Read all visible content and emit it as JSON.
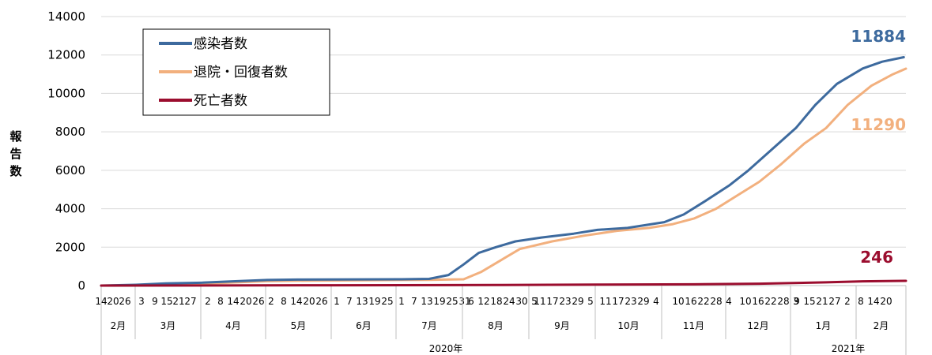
{
  "chart_data": {
    "type": "line",
    "title": "",
    "ylabel": "報告数",
    "ylim": [
      0,
      14000
    ],
    "yticks": [
      0,
      2000,
      4000,
      6000,
      8000,
      10000,
      12000,
      14000
    ],
    "grid": true,
    "legend_position": "top-left",
    "colors": {
      "infected": "#3d6a9e",
      "recovered": "#f2b07e",
      "deaths": "#9b0d2e",
      "grid": "#d9d9d9"
    },
    "x_day_labels": [
      "14",
      "20",
      "26",
      "3",
      "9",
      "15",
      "21",
      "27",
      "2",
      "8",
      "14",
      "20",
      "26",
      "2",
      "8",
      "14",
      "20",
      "26",
      "1",
      "7",
      "13",
      "19",
      "25",
      "1",
      "7",
      "13",
      "19",
      "25",
      "31",
      "6",
      "12",
      "18",
      "24",
      "30",
      "5",
      "11",
      "17",
      "23",
      "29",
      "5",
      "11",
      "17",
      "23",
      "29",
      "4",
      "10",
      "16",
      "22",
      "28",
      "4",
      "10",
      "16",
      "22",
      "28",
      "3",
      "9",
      "15",
      "21",
      "27",
      "2",
      "8",
      "14",
      "20"
    ],
    "months": [
      {
        "label": "2月"
      },
      {
        "label": "3月"
      },
      {
        "label": "4月"
      },
      {
        "label": "5月"
      },
      {
        "label": "6月"
      },
      {
        "label": "7月"
      },
      {
        "label": "8月"
      },
      {
        "label": "9月"
      },
      {
        "label": "10月"
      },
      {
        "label": "11月"
      },
      {
        "label": "12月"
      },
      {
        "label": "1月"
      },
      {
        "label": "2月"
      }
    ],
    "years": [
      {
        "label": "2020年"
      },
      {
        "label": "2021年"
      }
    ],
    "series": [
      {
        "key": "infected",
        "name": "感染者数",
        "end_label": "11884",
        "points": [
          [
            "2020-02-14",
            0
          ],
          [
            "2020-03-01",
            40
          ],
          [
            "2020-03-15",
            110
          ],
          [
            "2020-04-01",
            150
          ],
          [
            "2020-04-15",
            220
          ],
          [
            "2020-05-01",
            290
          ],
          [
            "2020-05-15",
            310
          ],
          [
            "2020-06-01",
            320
          ],
          [
            "2020-07-01",
            330
          ],
          [
            "2020-07-15",
            350
          ],
          [
            "2020-07-24",
            550
          ],
          [
            "2020-07-31",
            1100
          ],
          [
            "2020-08-07",
            1700
          ],
          [
            "2020-08-15",
            2000
          ],
          [
            "2020-08-24",
            2300
          ],
          [
            "2020-09-05",
            2500
          ],
          [
            "2020-09-20",
            2700
          ],
          [
            "2020-10-01",
            2900
          ],
          [
            "2020-10-15",
            3000
          ],
          [
            "2020-11-01",
            3300
          ],
          [
            "2020-11-10",
            3700
          ],
          [
            "2020-11-20",
            4400
          ],
          [
            "2020-12-01",
            5200
          ],
          [
            "2020-12-10",
            6000
          ],
          [
            "2020-12-20",
            7000
          ],
          [
            "2021-01-01",
            8200
          ],
          [
            "2021-01-10",
            9400
          ],
          [
            "2021-01-20",
            10500
          ],
          [
            "2021-02-01",
            11300
          ],
          [
            "2021-02-10",
            11650
          ],
          [
            "2021-02-20",
            11884
          ]
        ]
      },
      {
        "key": "recovered",
        "name": "退院・回復者数",
        "end_label": "11290",
        "points": [
          [
            "2020-02-14",
            0
          ],
          [
            "2020-03-01",
            20
          ],
          [
            "2020-03-20",
            80
          ],
          [
            "2020-04-10",
            140
          ],
          [
            "2020-05-01",
            230
          ],
          [
            "2020-05-20",
            260
          ],
          [
            "2020-06-15",
            280
          ],
          [
            "2020-07-15",
            300
          ],
          [
            "2020-07-31",
            330
          ],
          [
            "2020-08-08",
            700
          ],
          [
            "2020-08-17",
            1300
          ],
          [
            "2020-08-26",
            1900
          ],
          [
            "2020-09-10",
            2300
          ],
          [
            "2020-09-25",
            2600
          ],
          [
            "2020-10-10",
            2850
          ],
          [
            "2020-10-25",
            3000
          ],
          [
            "2020-11-05",
            3200
          ],
          [
            "2020-11-15",
            3500
          ],
          [
            "2020-11-25",
            4000
          ],
          [
            "2020-12-05",
            4700
          ],
          [
            "2020-12-15",
            5400
          ],
          [
            "2020-12-25",
            6300
          ],
          [
            "2021-01-05",
            7400
          ],
          [
            "2021-01-15",
            8200
          ],
          [
            "2021-01-25",
            9400
          ],
          [
            "2021-02-05",
            10400
          ],
          [
            "2021-02-15",
            11000
          ],
          [
            "2021-02-21",
            11290
          ]
        ]
      },
      {
        "key": "deaths",
        "name": "死亡者数",
        "end_label": "246",
        "points": [
          [
            "2020-02-14",
            0
          ],
          [
            "2020-04-01",
            5
          ],
          [
            "2020-06-01",
            15
          ],
          [
            "2020-08-15",
            30
          ],
          [
            "2020-10-01",
            50
          ],
          [
            "2020-11-15",
            65
          ],
          [
            "2020-12-15",
            100
          ],
          [
            "2021-01-15",
            170
          ],
          [
            "2021-02-01",
            220
          ],
          [
            "2021-02-21",
            246
          ]
        ]
      }
    ]
  }
}
